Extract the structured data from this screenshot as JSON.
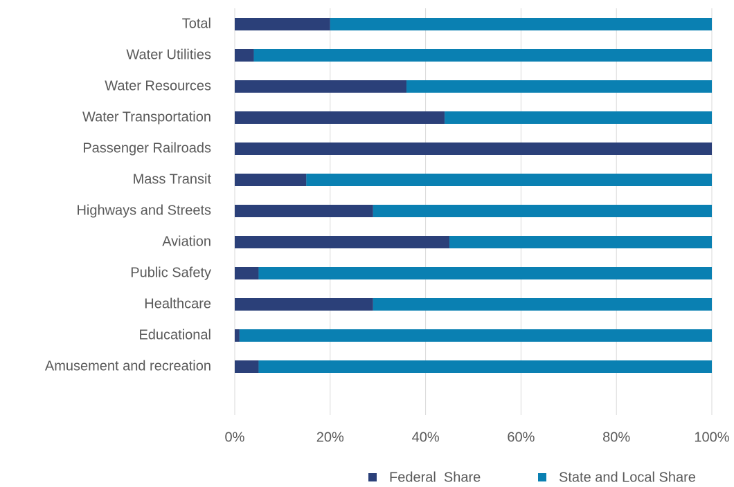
{
  "chart_data": {
    "type": "stacked-barh",
    "categories": [
      "Total",
      "Water Utilities",
      "Water Resources",
      "Water Transportation",
      "Passenger Railroads",
      "Mass Transit",
      "Highways and Streets",
      "Aviation",
      "Public Safety",
      "Healthcare",
      "Educational",
      "Amusement and recreation"
    ],
    "series": [
      {
        "name": "Federal  Share",
        "color": "#2b4079",
        "values": [
          20,
          4,
          36,
          44,
          100,
          15,
          29,
          45,
          5,
          29,
          1,
          5
        ]
      },
      {
        "name": "State and Local Share",
        "color": "#0a80b2",
        "values": [
          80,
          96,
          64,
          56,
          0,
          85,
          71,
          55,
          95,
          71,
          99,
          95
        ]
      }
    ],
    "xlim": [
      0,
      100
    ],
    "xticks": [
      {
        "value": 0,
        "label": "0%"
      },
      {
        "value": 20,
        "label": "20%"
      },
      {
        "value": 40,
        "label": "40%"
      },
      {
        "value": 60,
        "label": "60%"
      },
      {
        "value": 80,
        "label": "80%"
      },
      {
        "value": 100,
        "label": "100%"
      }
    ],
    "grid": true,
    "legend": "bottom"
  }
}
